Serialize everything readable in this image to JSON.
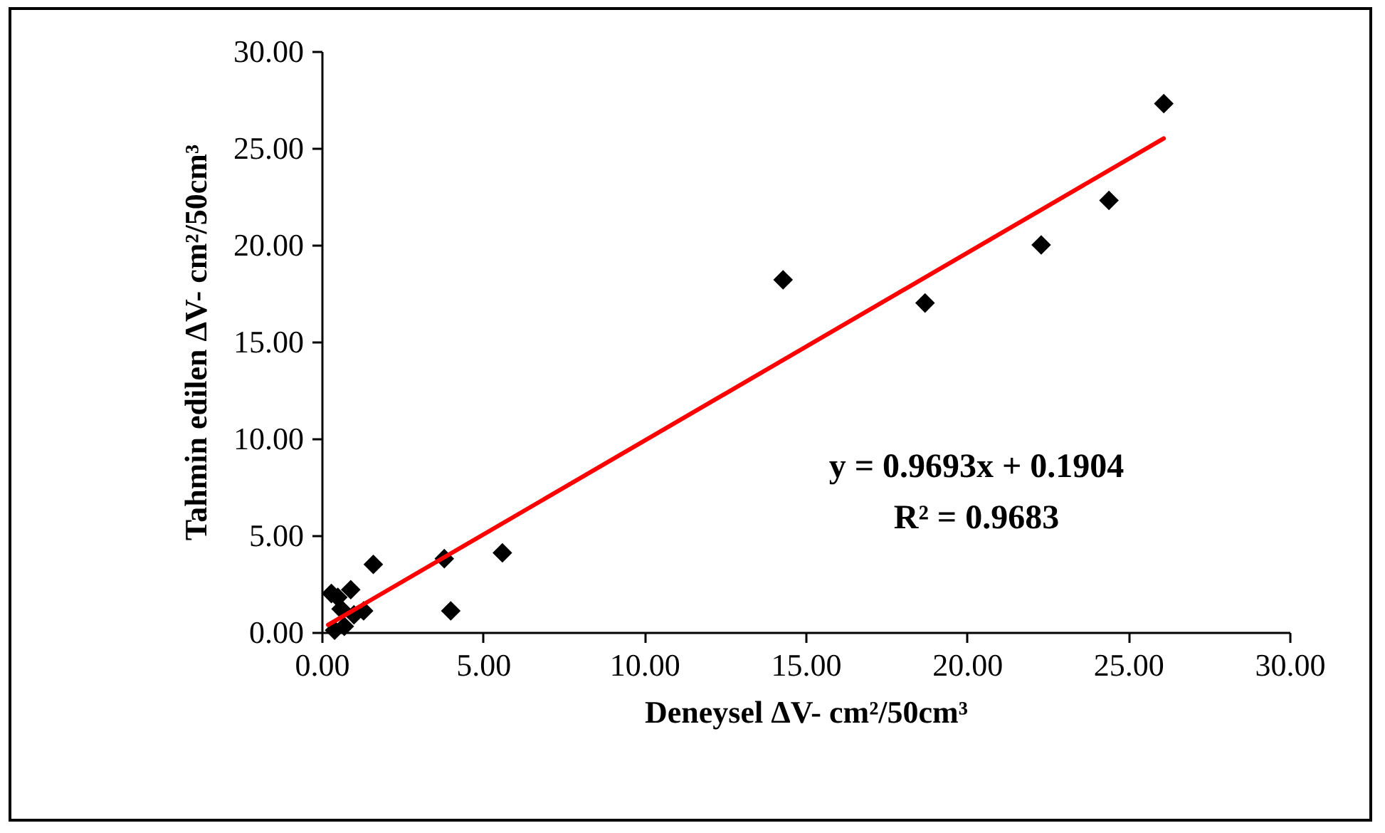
{
  "chart_data": {
    "type": "scatter",
    "xlabel": "Deneysel  ΔV- cm²/50cm³",
    "ylabel": "Tahmin edilen  ΔV- cm²/50cm³",
    "xlim": [
      0,
      30
    ],
    "ylim": [
      0,
      30
    ],
    "xticks": [
      {
        "value": 0,
        "label": "0.00"
      },
      {
        "value": 5,
        "label": "5.00"
      },
      {
        "value": 10,
        "label": "10.00"
      },
      {
        "value": 15,
        "label": "15.00"
      },
      {
        "value": 20,
        "label": "20.00"
      },
      {
        "value": 25,
        "label": "25.00"
      },
      {
        "value": 30,
        "label": "30.00"
      }
    ],
    "yticks": [
      {
        "value": 0,
        "label": "0.00"
      },
      {
        "value": 5,
        "label": "5.00"
      },
      {
        "value": 10,
        "label": "10.00"
      },
      {
        "value": 15,
        "label": "15.00"
      },
      {
        "value": 20,
        "label": "20.00"
      },
      {
        "value": 25,
        "label": "25.00"
      },
      {
        "value": 30,
        "label": "30.00"
      }
    ],
    "grid": false,
    "series": [
      {
        "marker": "diamond",
        "color": "#000000",
        "x": [
          14.3,
          18.7,
          22.3,
          24.4,
          26.1,
          5.6,
          3.8,
          4.0,
          1.6,
          0.3,
          0.9,
          0.4,
          0.6,
          1.0,
          1.3,
          0.7,
          0.5
        ],
        "values": [
          18.2,
          17.0,
          20.0,
          22.3,
          27.3,
          4.1,
          3.8,
          1.1,
          3.5,
          2.0,
          2.2,
          0.1,
          1.2,
          0.9,
          1.1,
          0.3,
          1.8
        ]
      },
      {
        "type": "line",
        "marker": "none",
        "color": "#ff0000",
        "x": [
          0.2,
          26.1
        ],
        "values": [
          0.38,
          25.5
        ]
      }
    ],
    "annotations": [
      "y = 0.9693x + 0.1904",
      "R² = 0.9683"
    ]
  }
}
